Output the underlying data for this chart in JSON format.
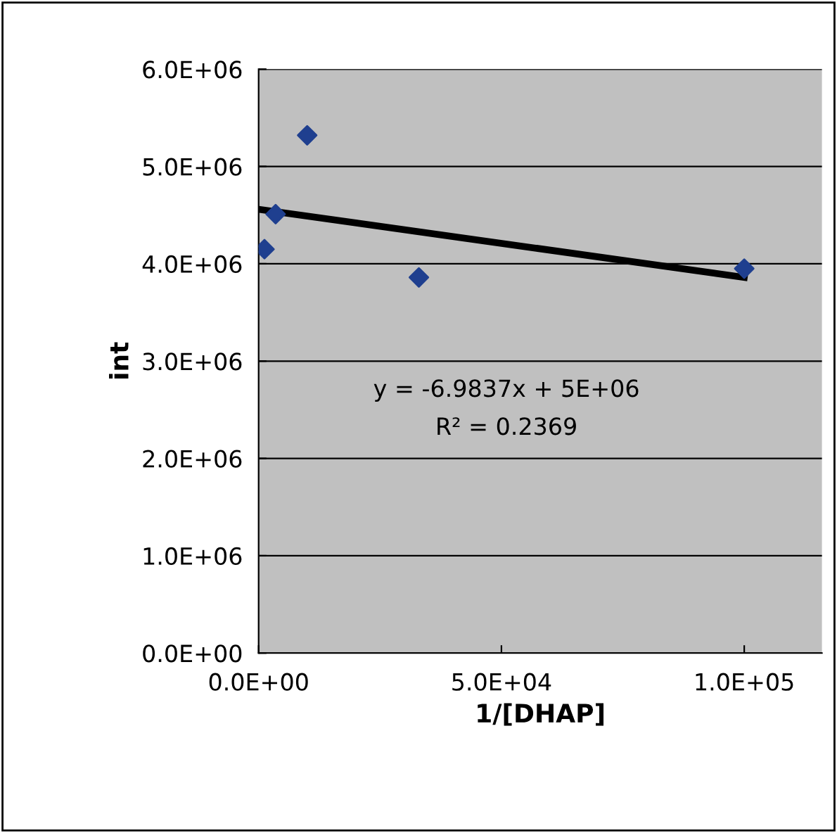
{
  "chart_data": {
    "type": "scatter",
    "xlabel": "1/[DHAP]",
    "ylabel": "int",
    "xlim": [
      0,
      116000
    ],
    "xticks": [
      {
        "value": 0,
        "label": "0.0E+00"
      },
      {
        "value": 50000,
        "label": "5.0E+04"
      },
      {
        "value": 100000,
        "label": "1.0E+05"
      }
    ],
    "ylim": [
      0,
      6000000
    ],
    "yticks": [
      {
        "value": 0,
        "label": "0.0E+00"
      },
      {
        "value": 1000000,
        "label": "1.0E+06"
      },
      {
        "value": 2000000,
        "label": "2.0E+06"
      },
      {
        "value": 3000000,
        "label": "3.0E+06"
      },
      {
        "value": 4000000,
        "label": "4.0E+06"
      },
      {
        "value": 5000000,
        "label": "5.0E+06"
      },
      {
        "value": 6000000,
        "label": "6.0E+06"
      }
    ],
    "grid": "y",
    "series": [
      {
        "color": "#1f3f8f",
        "marker": "diamond",
        "x": [
          1200,
          3500,
          10000,
          33000,
          100000
        ],
        "values": [
          4150000,
          4510000,
          5320000,
          3860000,
          3950000
        ]
      },
      {
        "type": "line",
        "color": "#000000",
        "marker": "none",
        "x": [
          0,
          100000
        ],
        "values": [
          4560000,
          3860000
        ]
      }
    ],
    "annotations": [
      "y = -6.9837x + 5E+06",
      "R² = 0.2369"
    ]
  }
}
